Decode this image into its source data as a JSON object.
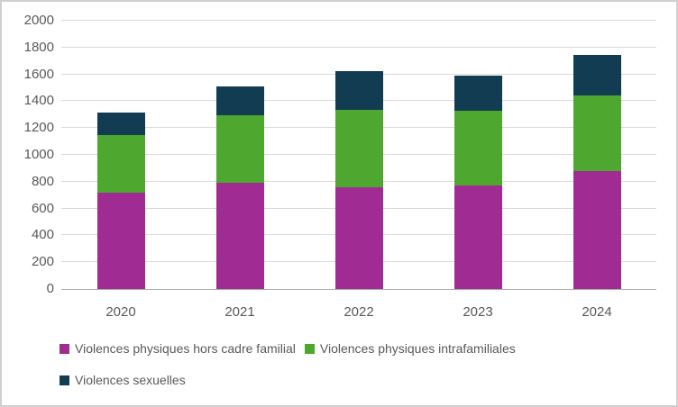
{
  "frame": {
    "background": "#FFFFFF",
    "border_color": "#D0D0D0"
  },
  "chart_data": {
    "type": "bar",
    "stacked": true,
    "title": "",
    "xlabel": "",
    "ylabel": "",
    "categories": [
      "2020",
      "2021",
      "2022",
      "2023",
      "2024"
    ],
    "series": [
      {
        "name": "Violences physiques hors cadre familial",
        "color": "#A02B93",
        "values": [
          720,
          790,
          760,
          770,
          880
        ]
      },
      {
        "name": "Violences physiques intrafamiliales",
        "color": "#4EA72E",
        "values": [
          430,
          505,
          575,
          560,
          565
        ]
      },
      {
        "name": "Violences sexuelles",
        "color": "#113C52",
        "values": [
          170,
          215,
          290,
          265,
          300
        ]
      }
    ],
    "stack_totals": [
      1320,
      1510,
      1625,
      1595,
      1745
    ],
    "ylim": [
      0,
      2000
    ],
    "yticks": [
      0,
      200,
      400,
      600,
      800,
      1000,
      1200,
      1400,
      1600,
      1800,
      2000
    ],
    "grid": true,
    "gridline_color": "#D9D9D9",
    "baseline_color": "#AFAFAF",
    "axis_text_color": "#595959",
    "legend_position": "bottom-left"
  }
}
